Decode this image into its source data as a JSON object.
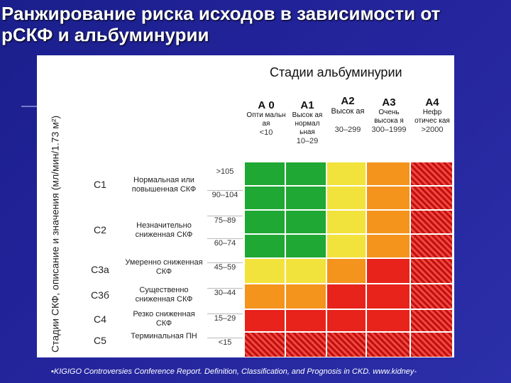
{
  "title": {
    "line1": "Ранжирование риска исходов в зависимости от",
    "line2": "рСКФ и альбуминурии"
  },
  "y_axis_title": "Стадии СКФ, описание и значения (мл/мин/1.73 м²)",
  "albuminuria": {
    "title": "Стадии альбуминурии",
    "columns": [
      {
        "code": "А 0",
        "desc": "Опти мальн ая",
        "range": "<10"
      },
      {
        "code": "А1",
        "desc": "Высок ая нормал ьная",
        "range": "10–29"
      },
      {
        "code": "А2",
        "desc": "Высок ая",
        "range": "30–299"
      },
      {
        "code": "А3",
        "desc": "Очень высока я",
        "range": "300–1999"
      },
      {
        "code": "А4",
        "desc": "Нефр отичес кая",
        "range": ">2000"
      }
    ]
  },
  "gfr_rows": [
    {
      "stage": "С1",
      "desc": "Нормальная или повышенная СКФ",
      "ranges": [
        ">105",
        "90–104"
      ]
    },
    {
      "stage": "С2",
      "desc": "Незначительно сниженная СКФ",
      "ranges": [
        "75–89",
        "60–74"
      ]
    },
    {
      "stage": "С3а",
      "desc": "Умеренно сниженная СКФ",
      "ranges": [
        "45–59"
      ]
    },
    {
      "stage": "С3б",
      "desc": "Существенно сниженная СКФ",
      "ranges": [
        "30–44"
      ]
    },
    {
      "stage": "С4",
      "desc": "Резко сниженная СКФ",
      "ranges": [
        "15–29"
      ]
    },
    {
      "stage": "С5",
      "desc": "Терминальная ПН",
      "ranges": [
        "<15"
      ]
    }
  ],
  "risk_grid": [
    [
      "green",
      "green",
      "yellow",
      "orange",
      "hatched-red"
    ],
    [
      "green",
      "green",
      "yellow",
      "orange",
      "hatched-red"
    ],
    [
      "green",
      "green",
      "yellow",
      "orange",
      "hatched-red"
    ],
    [
      "green",
      "green",
      "yellow",
      "orange",
      "hatched-red"
    ],
    [
      "yellow",
      "yellow",
      "orange",
      "red",
      "hatched-red"
    ],
    [
      "orange",
      "orange",
      "red",
      "red",
      "hatched-red"
    ],
    [
      "red",
      "red",
      "red",
      "red",
      "hatched-red"
    ],
    [
      "hatched-red",
      "hatched-red",
      "hatched-red",
      "hatched-red",
      "hatched-red"
    ]
  ],
  "colors": {
    "green": "#1fa834",
    "yellow": "#f2e33c",
    "orange": "#f4941c",
    "red": "#e8231b",
    "background": "#23239a"
  },
  "reference": "KIGIGO Controversies Conference Report. Definition, Classification, and Prognosis in CKD. www.kidney-"
}
